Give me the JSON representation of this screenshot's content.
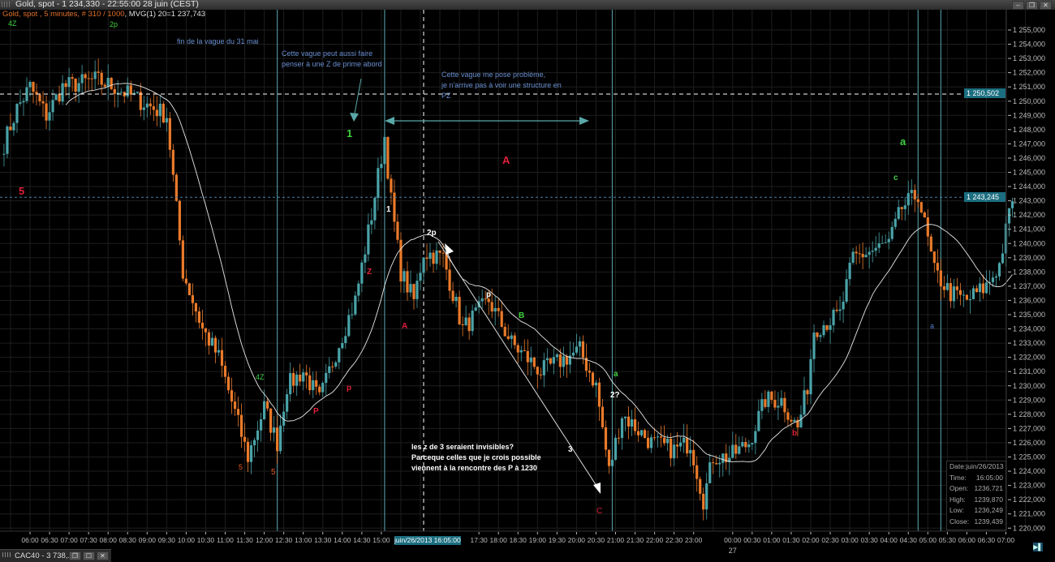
{
  "window": {
    "title": "Gold, spot - 1 234,330 - 22:55:00  28 juin (CEST)",
    "buttons": [
      "–",
      "❐",
      "✕"
    ]
  },
  "subtitle": {
    "instrument": "Gold, spot , 5 minutes, # 310 / 1000",
    "indicator": ", MVG(1) 20=1 237,743"
  },
  "colors": {
    "background": "#000000",
    "grid": "#1e1e1e",
    "candle_up": "#4aa3a8",
    "candle_down": "#ea7a2a",
    "moving_average": "#e8e8e8",
    "vertical_markers": "#4f8f9a",
    "price_highlight": "#1b6e80"
  },
  "chart": {
    "timeframe": "5 minutes",
    "moving_average_period": 20,
    "price_path": [
      [
        "26 05:20",
        1247.0
      ],
      [
        "26 05:40",
        1249.5
      ],
      [
        "26 06:00",
        1251.0
      ],
      [
        "26 06:25",
        1249.0
      ],
      [
        "26 06:50",
        1251.0
      ],
      [
        "26 07:40",
        1251.5
      ],
      [
        "26 08:10",
        1251.0
      ],
      [
        "26 08:50",
        1250.0
      ],
      [
        "26 09:30",
        1249.0
      ],
      [
        "26 09:55",
        1238.0
      ],
      [
        "26 10:25",
        1234.0
      ],
      [
        "26 10:50",
        1232.0
      ],
      [
        "26 11:35",
        1225.0
      ],
      [
        "26 12:00",
        1228.5
      ],
      [
        "26 12:20",
        1226.0
      ],
      [
        "26 12:35",
        1230.0
      ],
      [
        "26 13:00",
        1231.0
      ],
      [
        "26 13:25",
        1229.0
      ],
      [
        "26 13:55",
        1233.0
      ],
      [
        "26 14:20",
        1236.0
      ],
      [
        "26 14:45",
        1242.0
      ],
      [
        "26 15:05",
        1247.5
      ],
      [
        "26 15:15",
        1243.0
      ],
      [
        "26 15:30",
        1238.0
      ],
      [
        "26 15:50",
        1236.0
      ],
      [
        "26 16:05",
        1239.4
      ],
      [
        "26 16:35",
        1239.0
      ],
      [
        "26 17:05",
        1234.0
      ],
      [
        "26 17:45",
        1236.0
      ],
      [
        "26 18:20",
        1233.0
      ],
      [
        "26 19:05",
        1231.0
      ],
      [
        "26 20:05",
        1232.5
      ],
      [
        "26 20:30",
        1230.0
      ],
      [
        "26 20:50",
        1224.0
      ],
      [
        "26 21:10",
        1228.0
      ],
      [
        "26 21:55",
        1226.0
      ],
      [
        "26 22:30",
        1225.5
      ],
      [
        "26 22:55",
        1226.0
      ],
      [
        "26 23:15",
        1222.0
      ],
      [
        "26 23:30",
        1225.0
      ],
      [
        "26 23:55",
        1225.0
      ],
      [
        "27 00:25",
        1226.0
      ],
      [
        "27 00:50",
        1229.0
      ],
      [
        "27 01:15",
        1229.0
      ],
      [
        "27 01:40",
        1227.0
      ],
      [
        "27 01:55",
        1230.0
      ],
      [
        "27 02:05",
        1234.0
      ],
      [
        "27 02:45",
        1235.0
      ],
      [
        "27 03:05",
        1239.0
      ],
      [
        "27 03:35",
        1239.5
      ],
      [
        "27 04:00",
        1240.0
      ],
      [
        "27 04:20",
        1242.5
      ],
      [
        "27 04:45",
        1243.5
      ],
      [
        "27 05:10",
        1238.0
      ],
      [
        "27 05:35",
        1236.5
      ],
      [
        "27 06:00",
        1236.0
      ],
      [
        "27 06:30",
        1237.0
      ],
      [
        "27 06:50",
        1238.5
      ],
      [
        "27 07:10",
        1243.2
      ]
    ],
    "reference_lines": {
      "dashed_white": 1250.502,
      "dashed_blue": 1243.245
    },
    "price_labels": [
      "1 250,502",
      "1 243,245"
    ],
    "cursor_time_label": "juin/26/2013 16:05:00",
    "y_axis_labels": [
      "1 255,000",
      "1 254,000",
      "1 253,000",
      "1 252,000",
      "1 251,000",
      "1 250,000",
      "1 249,000",
      "1 248,000",
      "1 247,000",
      "1 246,000",
      "1 245,000",
      "1 244,000",
      "1 243,000",
      "1 242,000",
      "1 241,000",
      "1 240,000",
      "1 239,000",
      "1 238,000",
      "1 237,000",
      "1 236,000",
      "1 235,000",
      "1 234,000",
      "1 233,000",
      "1 232,000",
      "1 231,000",
      "1 230,000",
      "1 229,000",
      "1 228,000",
      "1 227,000",
      "1 226,000",
      "1 225,000",
      "1 224,000",
      "1 223,000",
      "1 222,000",
      "1 221,000",
      "1 220,000"
    ],
    "x_axis_labels": [
      "06:00",
      "06:30",
      "07:00",
      "07:30",
      "08:00",
      "08:30",
      "09:00",
      "09:30",
      "10:00",
      "10:30",
      "11:00",
      "11:30",
      "12:00",
      "12:30",
      "13:00",
      "13:30",
      "14:00",
      "14:30",
      "15:00",
      "17:30",
      "18:00",
      "18:30",
      "19:00",
      "19:30",
      "20:00",
      "20:30",
      "21:00",
      "21:30",
      "22:00",
      "22:30",
      "23:00",
      "00:00",
      "00:30",
      "01:00",
      "01:30",
      "02:00",
      "02:30",
      "03:00",
      "03:30",
      "04:00",
      "04:30",
      "05:00",
      "05:30",
      "06:00",
      "06:30",
      "07:00"
    ],
    "day_label": "27"
  },
  "info_box": {
    "rows": [
      {
        "label": "Date:",
        "value": "juin/26/2013"
      },
      {
        "label": "Time:",
        "value": "16:05:00"
      },
      {
        "label": "Open:",
        "value": "1236,721"
      },
      {
        "label": "High:",
        "value": "1239,870"
      },
      {
        "label": "Low:",
        "value": "1236,249"
      },
      {
        "label": "Close:",
        "value": "1239,439"
      }
    ]
  },
  "annotations": {
    "note1": "fin de la vague du 31 mai",
    "note2_line1": "Cette vague peut  aussi faire",
    "note2_line2": "penser à une Z de prime abord",
    "note3_line1": "Cette vague me pose problème,",
    "note3_line2": " je n'arrive pas à voir une structure en",
    "note3_line3": "PZ",
    "note4_line1": "les z de 3 seraient invisibles?",
    "note4_line2": "Parceque celles que je crois possible",
    "note4_line3": "viennent à la rencontre des P à 1230",
    "labels": [
      "4Z",
      "2p",
      "5",
      "1",
      "A",
      "a",
      "c",
      "1",
      "2p",
      "Z",
      "A",
      "p",
      "B",
      "a",
      "2?",
      "4Z",
      "p",
      "P",
      "5",
      "5",
      "3",
      "C",
      "b",
      "a"
    ]
  },
  "taskbar": {
    "item": "CAC40 - 3 738,...",
    "buttons": [
      "❐",
      "☐",
      "✕"
    ]
  }
}
